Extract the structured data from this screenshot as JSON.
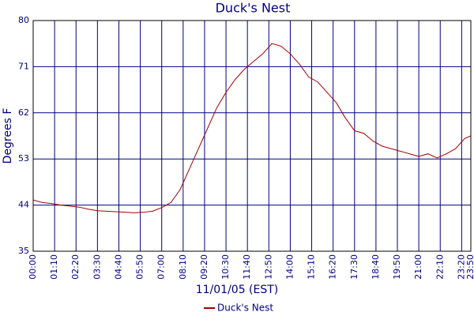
{
  "chart_data": {
    "type": "line",
    "title": "Duck's Nest",
    "x_label": "11/01/05 (EST)",
    "y_label": "Degrees F",
    "x": [
      0,
      30,
      60,
      90,
      120,
      150,
      180,
      210,
      240,
      270,
      300,
      330,
      360,
      390,
      420,
      450,
      480,
      510,
      540,
      570,
      600,
      630,
      660,
      690,
      720,
      750,
      780,
      810,
      840,
      870,
      900,
      930,
      960,
      990,
      1020,
      1050,
      1080,
      1110,
      1140,
      1170,
      1200,
      1230,
      1260,
      1290,
      1320,
      1350,
      1380,
      1410,
      1430
    ],
    "series": [
      {
        "name": "Duck's Nest",
        "color": "#a00000",
        "values": [
          45,
          44.5,
          44.3,
          44,
          43.8,
          43.6,
          43.2,
          42.9,
          42.8,
          42.7,
          42.6,
          42.5,
          42.6,
          42.8,
          43.5,
          44.5,
          47,
          51,
          55,
          59,
          63,
          66,
          68.5,
          70.5,
          72,
          73.5,
          75.5,
          75,
          73.5,
          71.5,
          69,
          68,
          66,
          64,
          61,
          58.5,
          58,
          56.5,
          55.5,
          55,
          54.5,
          54,
          53.5,
          54,
          53.2,
          54,
          55,
          57,
          57.5
        ]
      }
    ],
    "xlim": [
      0,
      1430
    ],
    "xticks": [
      {
        "value": 0,
        "label": "00:00"
      },
      {
        "value": 70,
        "label": "01:10"
      },
      {
        "value": 140,
        "label": "02:20"
      },
      {
        "value": 210,
        "label": "03:30"
      },
      {
        "value": 280,
        "label": "04:40"
      },
      {
        "value": 350,
        "label": "05:50"
      },
      {
        "value": 420,
        "label": "07:00"
      },
      {
        "value": 490,
        "label": "08:10"
      },
      {
        "value": 560,
        "label": "09:20"
      },
      {
        "value": 630,
        "label": "10:30"
      },
      {
        "value": 700,
        "label": "11:40"
      },
      {
        "value": 770,
        "label": "12:50"
      },
      {
        "value": 840,
        "label": "14:00"
      },
      {
        "value": 910,
        "label": "15:10"
      },
      {
        "value": 980,
        "label": "16:20"
      },
      {
        "value": 1050,
        "label": "17:30"
      },
      {
        "value": 1120,
        "label": "18:40"
      },
      {
        "value": 1190,
        "label": "19:50"
      },
      {
        "value": 1260,
        "label": "21:00"
      },
      {
        "value": 1330,
        "label": "22:10"
      },
      {
        "value": 1400,
        "label": "23:20"
      },
      {
        "value": 1430,
        "label": "23:50"
      }
    ],
    "ylim": [
      35,
      80
    ],
    "yticks": [
      35,
      44,
      53,
      62,
      71,
      80
    ],
    "grid": true,
    "grid_color": "#000080",
    "legend": "bottom"
  }
}
